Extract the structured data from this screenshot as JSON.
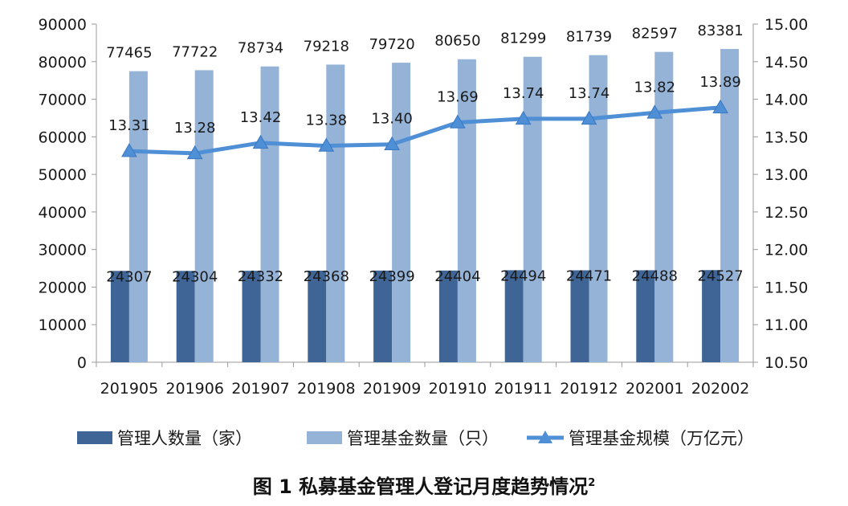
{
  "chart_data": {
    "type": "bar+line",
    "categories": [
      "201905",
      "201906",
      "201907",
      "201908",
      "201909",
      "201910",
      "201911",
      "201912",
      "202001",
      "202002"
    ],
    "series": [
      {
        "name": "管理人数量（家）",
        "type": "bar",
        "axis": "left",
        "color": "#3f6597",
        "values": [
          24307,
          24304,
          24332,
          24368,
          24399,
          24404,
          24494,
          24471,
          24488,
          24527
        ],
        "labels": [
          "24307",
          "24304",
          "24332",
          "24368",
          "24399",
          "24404",
          "24494",
          "24471",
          "24488",
          "24527"
        ]
      },
      {
        "name": "管理基金数量（只）",
        "type": "bar",
        "axis": "left",
        "color": "#95b3d7",
        "values": [
          77465,
          77722,
          78734,
          79218,
          79720,
          80650,
          81299,
          81739,
          82597,
          83381
        ],
        "labels": [
          "77465",
          "77722",
          "78734",
          "79218",
          "79720",
          "80650",
          "81299",
          "81739",
          "82597",
          "83381"
        ]
      },
      {
        "name": "管理基金规模（万亿元）",
        "type": "line",
        "axis": "right",
        "color": "#4f8fd6",
        "marker": "triangle",
        "values": [
          13.31,
          13.28,
          13.42,
          13.38,
          13.4,
          13.69,
          13.74,
          13.74,
          13.82,
          13.89
        ],
        "labels": [
          "13.31",
          "13.28",
          "13.42",
          "13.38",
          "13.40",
          "13.69",
          "13.74",
          "13.74",
          "13.82",
          "13.89"
        ]
      }
    ],
    "y_left": {
      "min": 0,
      "max": 90000,
      "ticks": [
        "0",
        "10000",
        "20000",
        "30000",
        "40000",
        "50000",
        "60000",
        "70000",
        "80000",
        "90000"
      ]
    },
    "y_right": {
      "min": 10.5,
      "max": 15.0,
      "ticks": [
        "10.50",
        "11.00",
        "11.50",
        "12.00",
        "12.50",
        "13.00",
        "13.50",
        "14.00",
        "14.50",
        "15.00"
      ]
    },
    "legend_position": "bottom",
    "grid": false
  },
  "caption": {
    "text": "图 1  私募基金管理人登记月度趋势情况",
    "superscript": "2"
  }
}
